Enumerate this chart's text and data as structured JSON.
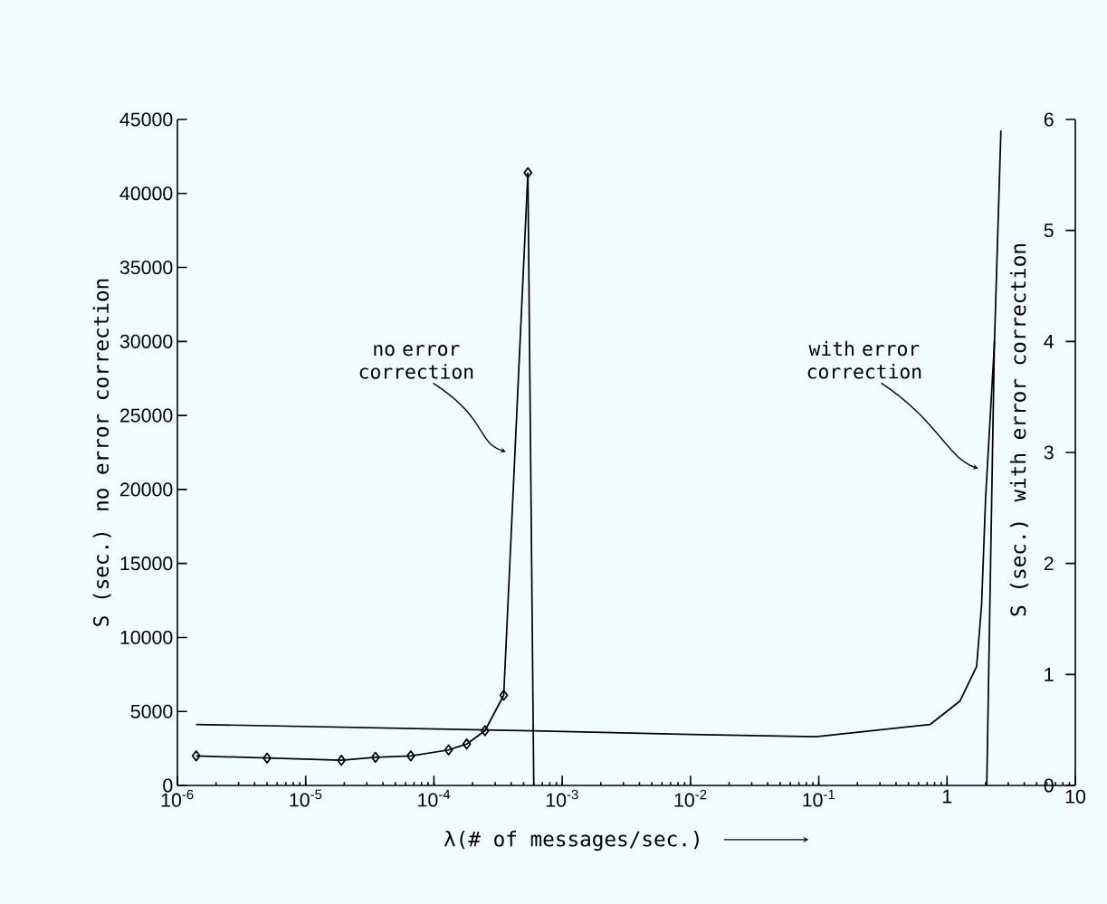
{
  "chart_data": {
    "type": "line",
    "xlabel": "λ(# of messages/sec.)",
    "ylabel": "S (sec.) no error correction",
    "y2label": "S (sec.) with error correction",
    "log": "x",
    "xlim": [
      1e-06,
      10
    ],
    "xticks": [
      {
        "value": 1e-06,
        "label": "10$^{-6}$"
      },
      {
        "value": 1e-05,
        "label": "10$^{-5}$"
      },
      {
        "value": 0.0001,
        "label": "10$^{-4}$"
      },
      {
        "value": 0.001,
        "label": "10$^{-3}$"
      },
      {
        "value": 0.01,
        "label": "10$^{-2}$"
      },
      {
        "value": 0.1,
        "label": "10$^{-1}$"
      },
      1,
      10
    ],
    "ylim": [
      0,
      45000
    ],
    "yticks": [
      0,
      5000,
      10000,
      15000,
      20000,
      25000,
      30000,
      35000,
      40000,
      45000
    ],
    "y2lim": [
      0,
      6
    ],
    "y2ticks": [
      0,
      1,
      2,
      3,
      4,
      5,
      6
    ],
    "series": [
      {
        "color": "#000000",
        "marker": "diamond",
        "x": [
          1.4e-06,
          5e-06,
          1.9e-05,
          3.5e-05,
          6.6e-05,
          0.00013,
          0.00018,
          0.00025,
          0.00035,
          0.00054
        ],
        "values": [
          2000,
          1850,
          1700,
          1900,
          2000,
          2400,
          2800,
          3700,
          6100,
          41400
        ]
      },
      {
        "color": "#000000",
        "marker": "none",
        "x": [
          0.00054,
          0.0006
        ],
        "values": [
          41400,
          0
        ]
      },
      {
        "color": "#000000",
        "marker": "none",
        "axis": "y2",
        "x": [
          1.4e-06,
          0.00072,
          0.01,
          0.095,
          0.74,
          1.26,
          1.7,
          1.86,
          2.0,
          2.34,
          2.63
        ],
        "values": [
          0.55,
          0.49,
          0.46,
          0.44,
          0.55,
          0.76,
          1.07,
          1.63,
          2.6,
          3.98,
          5.9
        ]
      },
      {
        "color": "#000000",
        "marker": "none",
        "axis": "y2",
        "x": [
          2.04,
          2.34
        ],
        "values": [
          0,
          4.0
        ]
      }
    ],
    "annotations": [
      "no error correction",
      "with error correction"
    ]
  }
}
